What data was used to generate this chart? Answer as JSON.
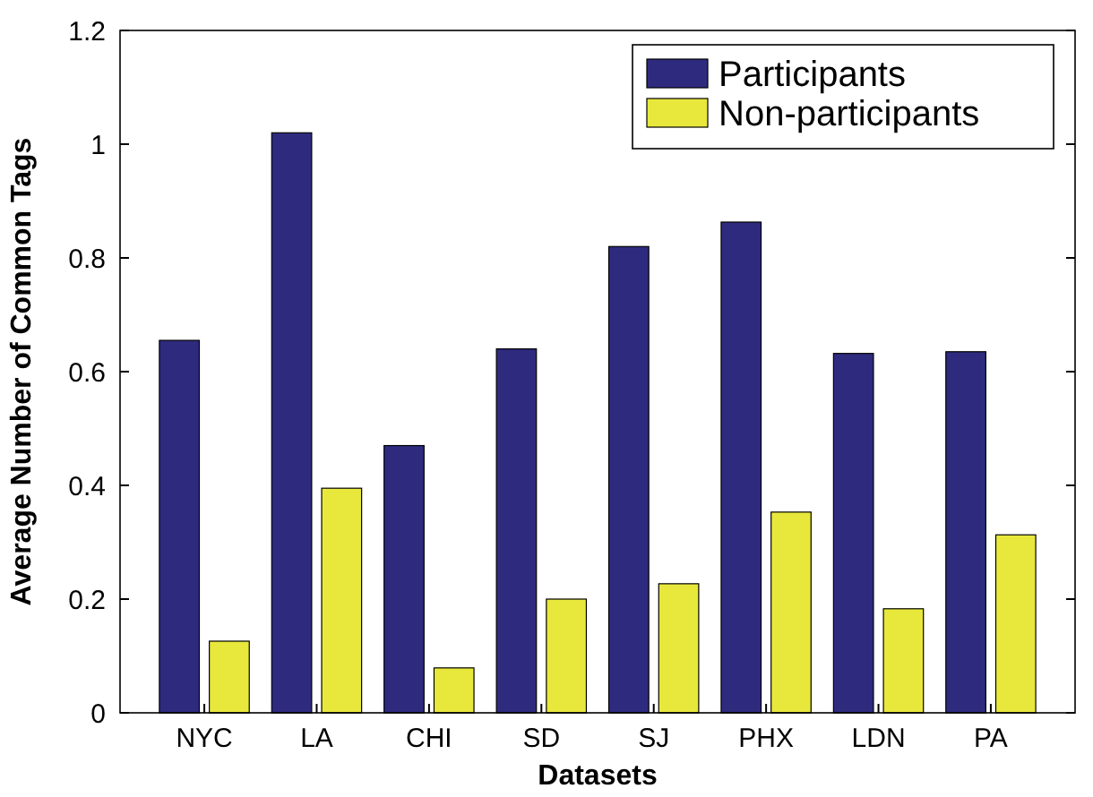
{
  "chart_data": {
    "type": "bar",
    "xlabel": "Datasets",
    "ylabel": "Average Number of Common Tags",
    "categories": [
      "NYC",
      "LA",
      "CHI",
      "SD",
      "SJ",
      "PHX",
      "LDN",
      "PA"
    ],
    "series": [
      {
        "name": "Participants",
        "color": "#2e2b7f",
        "values": [
          0.655,
          1.02,
          0.47,
          0.64,
          0.82,
          0.863,
          0.632,
          0.635
        ]
      },
      {
        "name": "Non-participants",
        "color": "#e8e83c",
        "values": [
          0.126,
          0.395,
          0.079,
          0.2,
          0.227,
          0.353,
          0.183,
          0.313
        ]
      }
    ],
    "ylim": [
      0,
      1.2
    ],
    "yticks": [
      0,
      0.2,
      0.4,
      0.6,
      0.8,
      1,
      1.2
    ],
    "grid": false,
    "legend": "top right"
  }
}
